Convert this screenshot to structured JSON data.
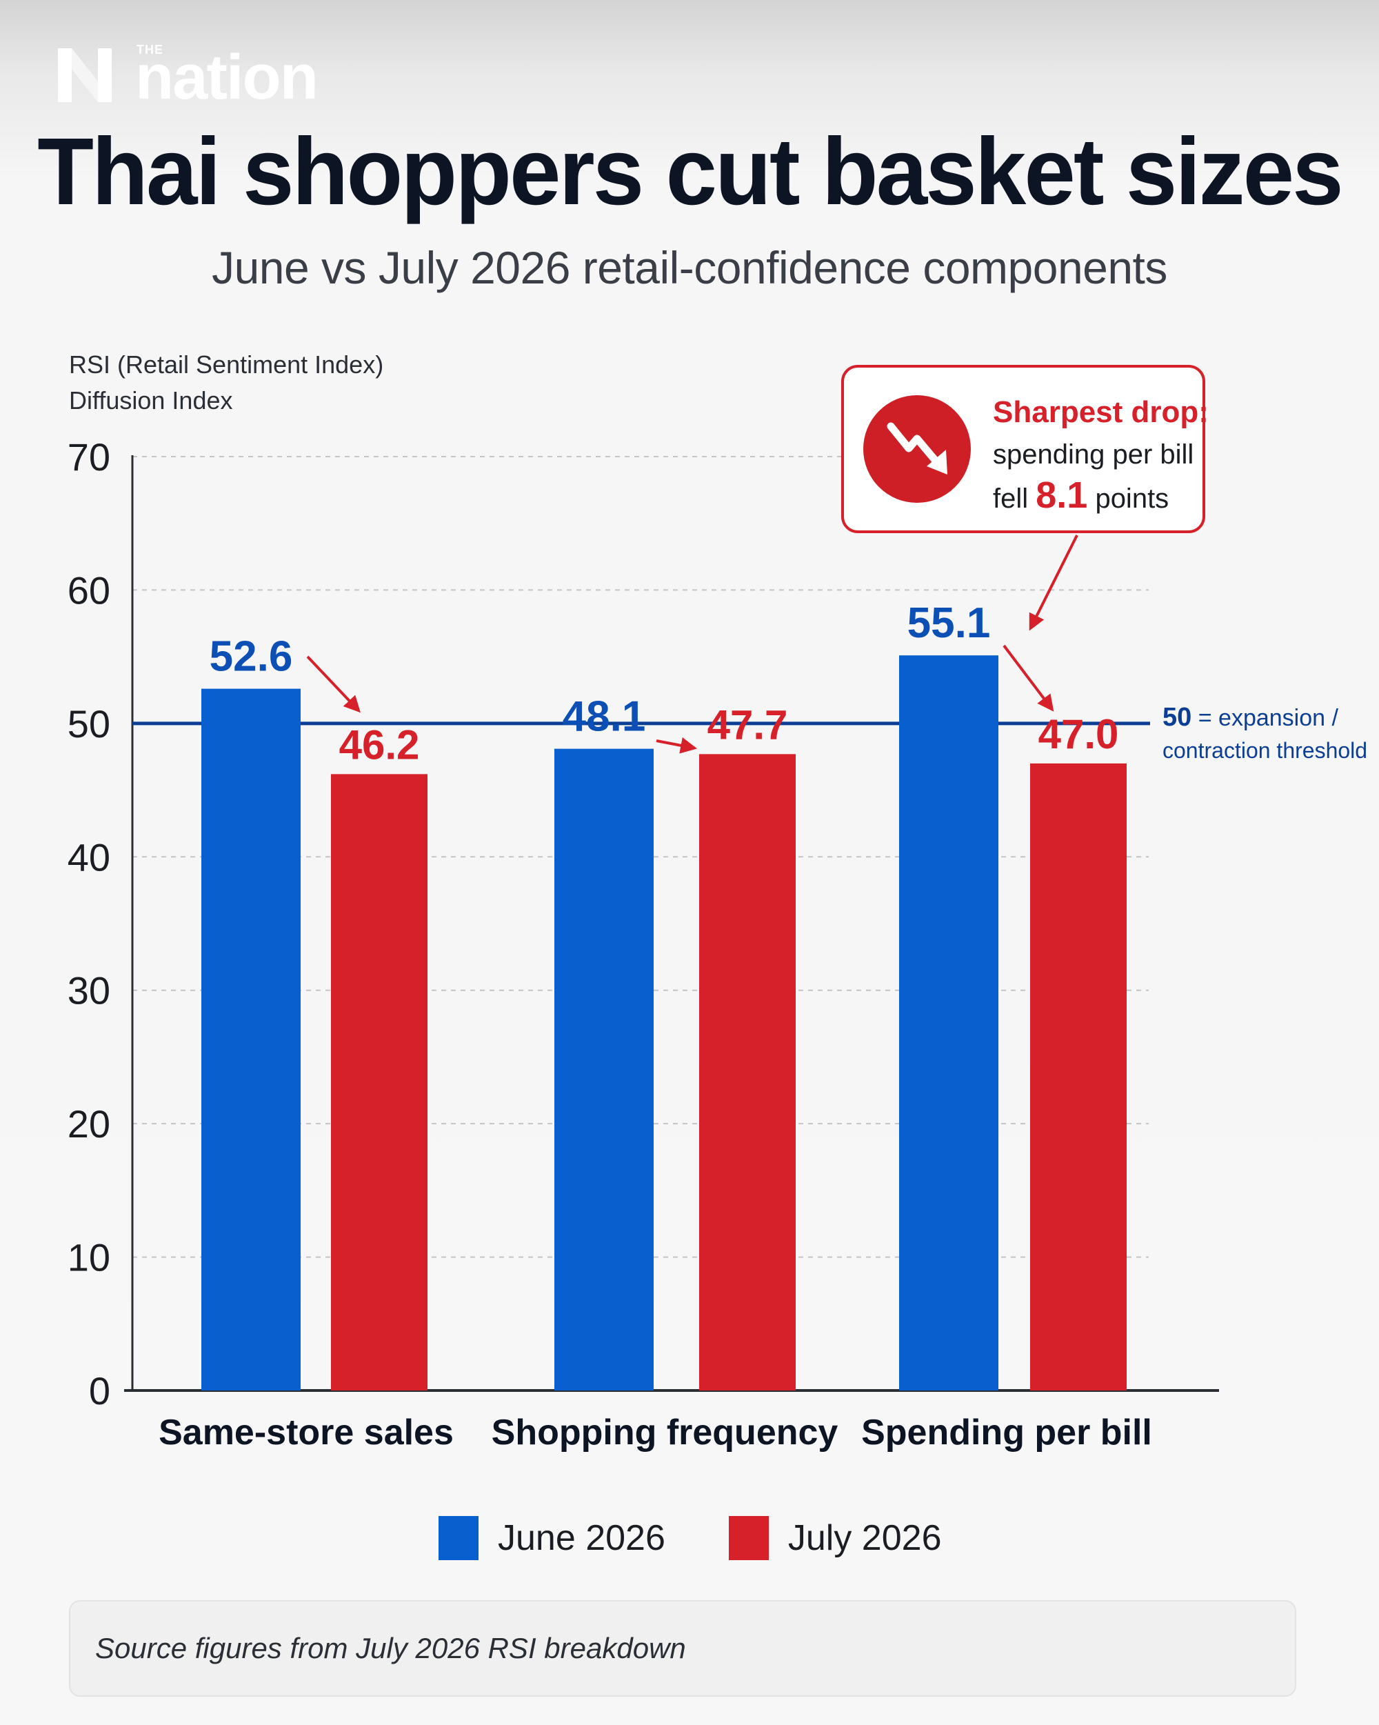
{
  "brand": {
    "small": "THE",
    "word": "nation"
  },
  "title": "Thai shoppers cut basket sizes",
  "subtitle": "June vs July 2026 retail-confidence components",
  "colors": {
    "june": "#0a5fcf",
    "july": "#d6202a",
    "threshold": "#0c3f93",
    "text_dark": "#0d1524"
  },
  "chart_data": {
    "type": "bar",
    "ylabel_lines": [
      "RSI (Retail Sentiment Index)",
      "Diffusion Index"
    ],
    "ylim": [
      0,
      70
    ],
    "yticks": [
      0,
      10,
      20,
      30,
      40,
      50,
      60,
      70
    ],
    "grid": true,
    "categories": [
      "Same-store sales",
      "Shopping frequency",
      "Spending per bill"
    ],
    "series": [
      {
        "name": "June 2026",
        "values": [
          52.6,
          48.1,
          55.1
        ],
        "labels": [
          "52.6",
          "48.1",
          "55.1"
        ]
      },
      {
        "name": "July 2026",
        "values": [
          46.2,
          47.7,
          47.0
        ],
        "labels": [
          "46.2",
          "47.7",
          "47.0"
        ]
      }
    ],
    "threshold": {
      "value": 50,
      "label_num": "50",
      "label_line1": " = expansion /",
      "label_line2": "contraction threshold"
    },
    "callout": {
      "head": "Sharpest drop:",
      "line2": "spending per bill",
      "line3_pre": "fell ",
      "line3_num": "8.1",
      "line3_post": " points",
      "icon": "trending-down-icon"
    },
    "legend_position": "bottom"
  },
  "source": "Source figures from July 2026 RSI breakdown"
}
